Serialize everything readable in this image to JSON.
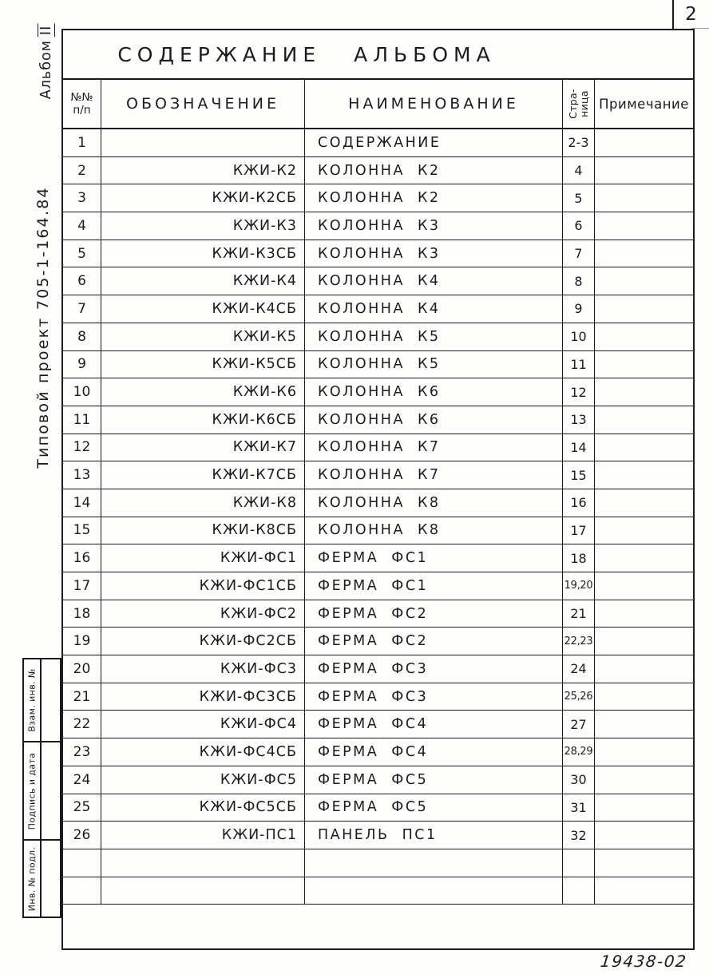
{
  "page": {
    "sheet_number": "2",
    "footer_code": "19438-02"
  },
  "margin": {
    "album": "Альбом",
    "album_roman": "II",
    "project": "Типовой проект 705-1-164.84",
    "stamps": [
      {
        "label": "Взам. инв. №"
      },
      {
        "label": "Подпись и дата"
      },
      {
        "label": "Инв. № подл."
      }
    ]
  },
  "table": {
    "title": "СОДЕРЖАНИЕ АЛЬБОМА",
    "headers": {
      "num_line1": "№№",
      "num_line2": "п/п",
      "designation": "ОБОЗНАЧЕНИЕ",
      "name": "НАИМЕНОВАНИЕ",
      "page_line1": "Стра-",
      "page_line2": "ница",
      "note": "Примечание"
    },
    "empty_row_count": 2,
    "rows": [
      {
        "num": "1",
        "designation": "",
        "name": "СОДЕРЖАНИЕ",
        "page": "2-3",
        "note": ""
      },
      {
        "num": "2",
        "designation": "КЖИ-К2",
        "name": "КОЛОННА К2",
        "page": "4",
        "note": ""
      },
      {
        "num": "3",
        "designation": "КЖИ-К2СБ",
        "name": "КОЛОННА К2",
        "page": "5",
        "note": ""
      },
      {
        "num": "4",
        "designation": "КЖИ-К3",
        "name": "КОЛОННА К3",
        "page": "6",
        "note": ""
      },
      {
        "num": "5",
        "designation": "КЖИ-К3СБ",
        "name": "КОЛОННА К3",
        "page": "7",
        "note": ""
      },
      {
        "num": "6",
        "designation": "КЖИ-К4",
        "name": "КОЛОННА К4",
        "page": "8",
        "note": ""
      },
      {
        "num": "7",
        "designation": "КЖИ-К4СБ",
        "name": "КОЛОННА К4",
        "page": "9",
        "note": ""
      },
      {
        "num": "8",
        "designation": "КЖИ-К5",
        "name": "КОЛОННА К5",
        "page": "10",
        "note": ""
      },
      {
        "num": "9",
        "designation": "КЖИ-К5СБ",
        "name": "КОЛОННА К5",
        "page": "11",
        "note": ""
      },
      {
        "num": "10",
        "designation": "КЖИ-К6",
        "name": "КОЛОННА К6",
        "page": "12",
        "note": ""
      },
      {
        "num": "11",
        "designation": "КЖИ-К6СБ",
        "name": "КОЛОННА К6",
        "page": "13",
        "note": ""
      },
      {
        "num": "12",
        "designation": "КЖИ-К7",
        "name": "КОЛОННА К7",
        "page": "14",
        "note": ""
      },
      {
        "num": "13",
        "designation": "КЖИ-К7СБ",
        "name": "КОЛОННА К7",
        "page": "15",
        "note": ""
      },
      {
        "num": "14",
        "designation": "КЖИ-К8",
        "name": "КОЛОННА К8",
        "page": "16",
        "note": ""
      },
      {
        "num": "15",
        "designation": "КЖИ-К8СБ",
        "name": "КОЛОННА К8",
        "page": "17",
        "note": ""
      },
      {
        "num": "16",
        "designation": "КЖИ-ФС1",
        "name": "ФЕРМА ФС1",
        "page": "18",
        "note": ""
      },
      {
        "num": "17",
        "designation": "КЖИ-ФС1СБ",
        "name": "ФЕРМА ФС1",
        "page": "19,20",
        "note": ""
      },
      {
        "num": "18",
        "designation": "КЖИ-ФС2",
        "name": "ФЕРМА ФС2",
        "page": "21",
        "note": ""
      },
      {
        "num": "19",
        "designation": "КЖИ-ФС2СБ",
        "name": "ФЕРМА ФС2",
        "page": "22,23",
        "note": ""
      },
      {
        "num": "20",
        "designation": "КЖИ-ФС3",
        "name": "ФЕРМА ФС3",
        "page": "24",
        "note": ""
      },
      {
        "num": "21",
        "designation": "КЖИ-ФС3СБ",
        "name": "ФЕРМА ФС3",
        "page": "25,26",
        "note": ""
      },
      {
        "num": "22",
        "designation": "КЖИ-ФС4",
        "name": "ФЕРМА ФС4",
        "page": "27",
        "note": ""
      },
      {
        "num": "23",
        "designation": "КЖИ-ФС4СБ",
        "name": "ФЕРМА ФС4",
        "page": "28,29",
        "note": ""
      },
      {
        "num": "24",
        "designation": "КЖИ-ФС5",
        "name": "ФЕРМА ФС5",
        "page": "30",
        "note": ""
      },
      {
        "num": "25",
        "designation": "КЖИ-ФС5СБ",
        "name": "ФЕРМА ФС5",
        "page": "31",
        "note": ""
      },
      {
        "num": "26",
        "designation": "КЖИ-ПС1",
        "name": "ПАНЕЛЬ ПС1",
        "page": "32",
        "note": ""
      }
    ]
  }
}
